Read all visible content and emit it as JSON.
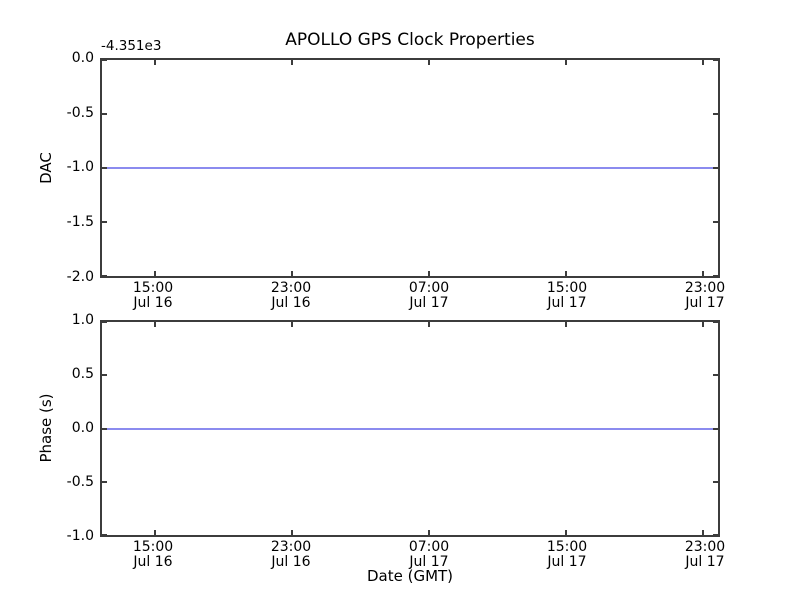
{
  "figure": {
    "background": "#ffffff",
    "spine_color": "#3c3c3c",
    "line_color": "#8b8bef",
    "grid": false,
    "legend": false
  },
  "chart_data": [
    {
      "type": "line",
      "title": "APOLLO GPS Clock Properties",
      "ylabel": "DAC",
      "y_offset_text": "-4.351e3",
      "ylim": [
        -2.0,
        0.0
      ],
      "yticks": [
        0.0,
        -0.5,
        -1.0,
        -1.5,
        -2.0
      ],
      "yticklabels": [
        "0.0",
        "-0.5",
        "-1.0",
        "-1.5",
        "-2.0"
      ],
      "xticks": [
        {
          "time": "15:00",
          "date": "Jul 16"
        },
        {
          "time": "23:00",
          "date": "Jul 16"
        },
        {
          "time": "07:00",
          "date": "Jul 17"
        },
        {
          "time": "15:00",
          "date": "Jul 17"
        },
        {
          "time": "23:00",
          "date": "Jul 17"
        }
      ],
      "series": [
        {
          "name": "DAC",
          "shape": "constant-horizontal-line",
          "value": -1.0
        }
      ]
    },
    {
      "type": "line",
      "title": "",
      "xlabel": "Date (GMT)",
      "ylabel": "Phase (s)",
      "ylim": [
        -1.0,
        1.0
      ],
      "yticks": [
        1.0,
        0.5,
        0.0,
        -0.5,
        -1.0
      ],
      "yticklabels": [
        "1.0",
        "0.5",
        "0.0",
        "-0.5",
        "-1.0"
      ],
      "xticks": [
        {
          "time": "15:00",
          "date": "Jul 16"
        },
        {
          "time": "23:00",
          "date": "Jul 16"
        },
        {
          "time": "07:00",
          "date": "Jul 17"
        },
        {
          "time": "15:00",
          "date": "Jul 17"
        },
        {
          "time": "23:00",
          "date": "Jul 17"
        }
      ],
      "series": [
        {
          "name": "Phase (s)",
          "shape": "constant-horizontal-line",
          "value": 0.0
        }
      ]
    }
  ]
}
